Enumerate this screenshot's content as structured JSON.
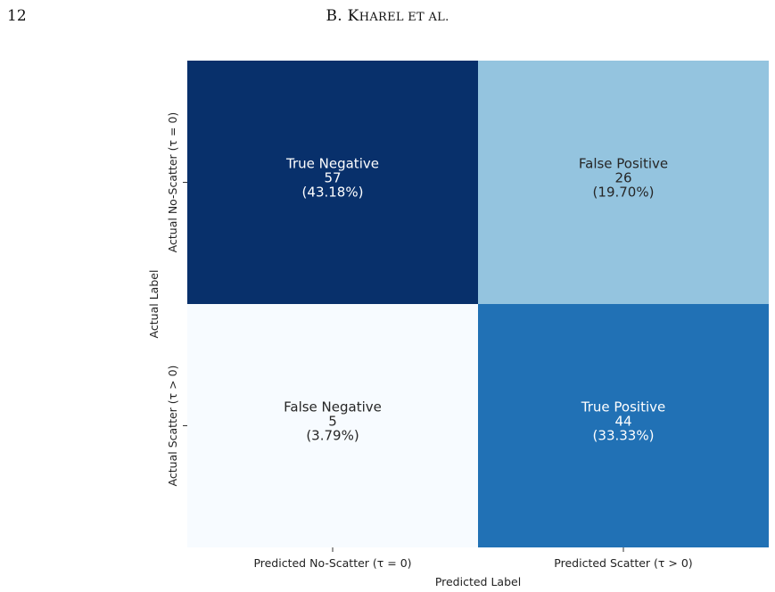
{
  "header": {
    "page_number": "12",
    "running_head": "B. KHAREL ET AL."
  },
  "chart_data": {
    "type": "heatmap",
    "colormap": "Blues",
    "row_labels": [
      "Actual No-Scatter (τ = 0)",
      "Actual Scatter (τ > 0)"
    ],
    "col_labels": [
      "Predicted No-Scatter (τ = 0)",
      "Predicted Scatter (τ > 0)"
    ],
    "xlabel": "Predicted Label",
    "ylabel": "Actual Label",
    "cells": [
      [
        {
          "name": "True Negative",
          "count": 57,
          "percent": "(43.18%)",
          "color": "#08306b",
          "text_color": "#ffffff"
        },
        {
          "name": "False Positive",
          "count": 26,
          "percent": "(19.70%)",
          "color": "#94c4df",
          "text_color": "#262626"
        }
      ],
      [
        {
          "name": "False Negative",
          "count": 5,
          "percent": "(3.79%)",
          "color": "#f7fbff",
          "text_color": "#262626"
        },
        {
          "name": "True Positive",
          "count": 44,
          "percent": "(33.33%)",
          "color": "#2171b5",
          "text_color": "#ffffff"
        }
      ]
    ]
  }
}
